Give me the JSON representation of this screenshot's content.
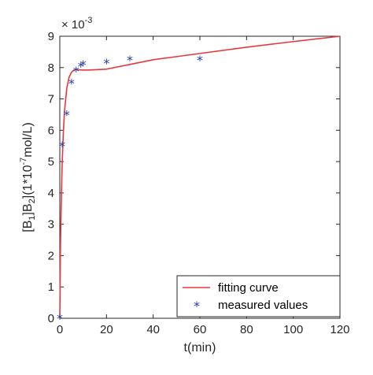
{
  "chart_data": {
    "type": "line",
    "title": "",
    "xlabel": "t(min)",
    "ylabel": {
      "text_a": "[B",
      "sub_a": "1",
      "text_b": "]B",
      "sub_b": "2",
      "text_c": "](1*10",
      "sup": "-7",
      "text_d": "mol/L)"
    },
    "xlim": [
      0,
      120
    ],
    "ylim": [
      0,
      9
    ],
    "x_ticks": [
      "0",
      "20",
      "40",
      "60",
      "80",
      "100",
      "120"
    ],
    "y_ticks": [
      "0",
      "1",
      "2",
      "3",
      "4",
      "5",
      "6",
      "7",
      "8",
      "9"
    ],
    "y_exponent": {
      "base": "× 10",
      "power": "-3"
    },
    "grid": false,
    "legend_position": "bottom-right",
    "colors": {
      "fit": "#e8383d",
      "measured": "#1f3f9e"
    },
    "series": [
      {
        "name": "fitting curve",
        "style": "line",
        "x": [
          0,
          0.3,
          0.6,
          1,
          1.5,
          2,
          3,
          4,
          5,
          6,
          7,
          8,
          10,
          12,
          15,
          20,
          30,
          40,
          50,
          60,
          80,
          100,
          120
        ],
        "y": [
          0,
          2.4,
          3.6,
          4.9,
          5.9,
          6.6,
          7.35,
          7.7,
          7.85,
          7.92,
          7.94,
          7.93,
          7.92,
          7.92,
          7.93,
          7.95,
          8.1,
          8.25,
          8.35,
          8.45,
          8.65,
          8.83,
          9.0
        ]
      },
      {
        "name": "measured values",
        "style": "marker",
        "marker": "*",
        "x": [
          0,
          1,
          3,
          5,
          7,
          9,
          10,
          20,
          30,
          60
        ],
        "y": [
          0,
          5.5,
          6.5,
          7.5,
          7.9,
          8.05,
          8.1,
          8.15,
          8.25,
          8.25
        ]
      }
    ]
  }
}
